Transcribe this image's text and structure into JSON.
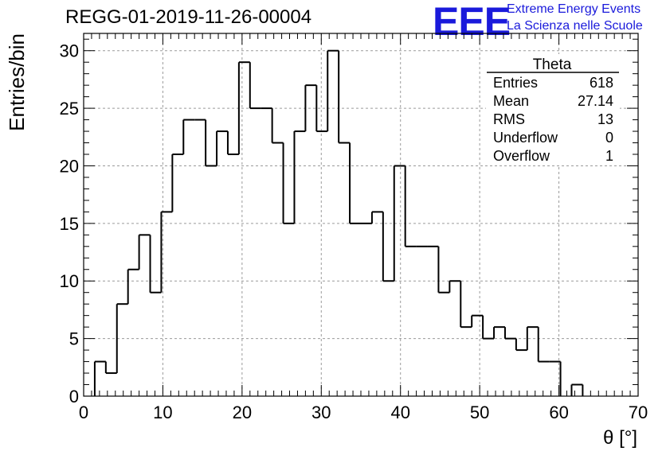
{
  "title": "REGG-01-2019-11-26-00004",
  "logo": {
    "mark": "EEE",
    "line1": "Extreme Energy Events",
    "line2": "La Scienza nelle Scuole"
  },
  "colors": {
    "logo": "#1a1adb",
    "line": "#000000",
    "grid": "#9a9a9a"
  },
  "stats": {
    "name": "Theta",
    "rows": [
      {
        "label": "Entries",
        "value": "618"
      },
      {
        "label": "Mean",
        "value": "27.14"
      },
      {
        "label": "RMS",
        "value": "13"
      },
      {
        "label": "Underflow",
        "value": "0"
      },
      {
        "label": "Overflow",
        "value": "1"
      }
    ]
  },
  "chart_data": {
    "type": "histogram",
    "xlabel": "θ [°]",
    "ylabel": "Entries/bin",
    "xlim": [
      0,
      70
    ],
    "ylim": [
      0,
      31.5
    ],
    "xticks": [
      0,
      10,
      20,
      30,
      40,
      50,
      60,
      70
    ],
    "yticks": [
      0,
      5,
      10,
      15,
      20,
      25,
      30
    ],
    "grid": true,
    "bin_width": 1.4,
    "bin_start": 0,
    "values": [
      0,
      3,
      2,
      8,
      11,
      14,
      9,
      16,
      21,
      24,
      24,
      20,
      23,
      21,
      29,
      25,
      25,
      22,
      15,
      23,
      27,
      23,
      30,
      22,
      15,
      15,
      16,
      10,
      20,
      13,
      13,
      13,
      9,
      10,
      6,
      7,
      5,
      6,
      5,
      4,
      6,
      3,
      3,
      0,
      1,
      0,
      0,
      0,
      0,
      0
    ]
  }
}
